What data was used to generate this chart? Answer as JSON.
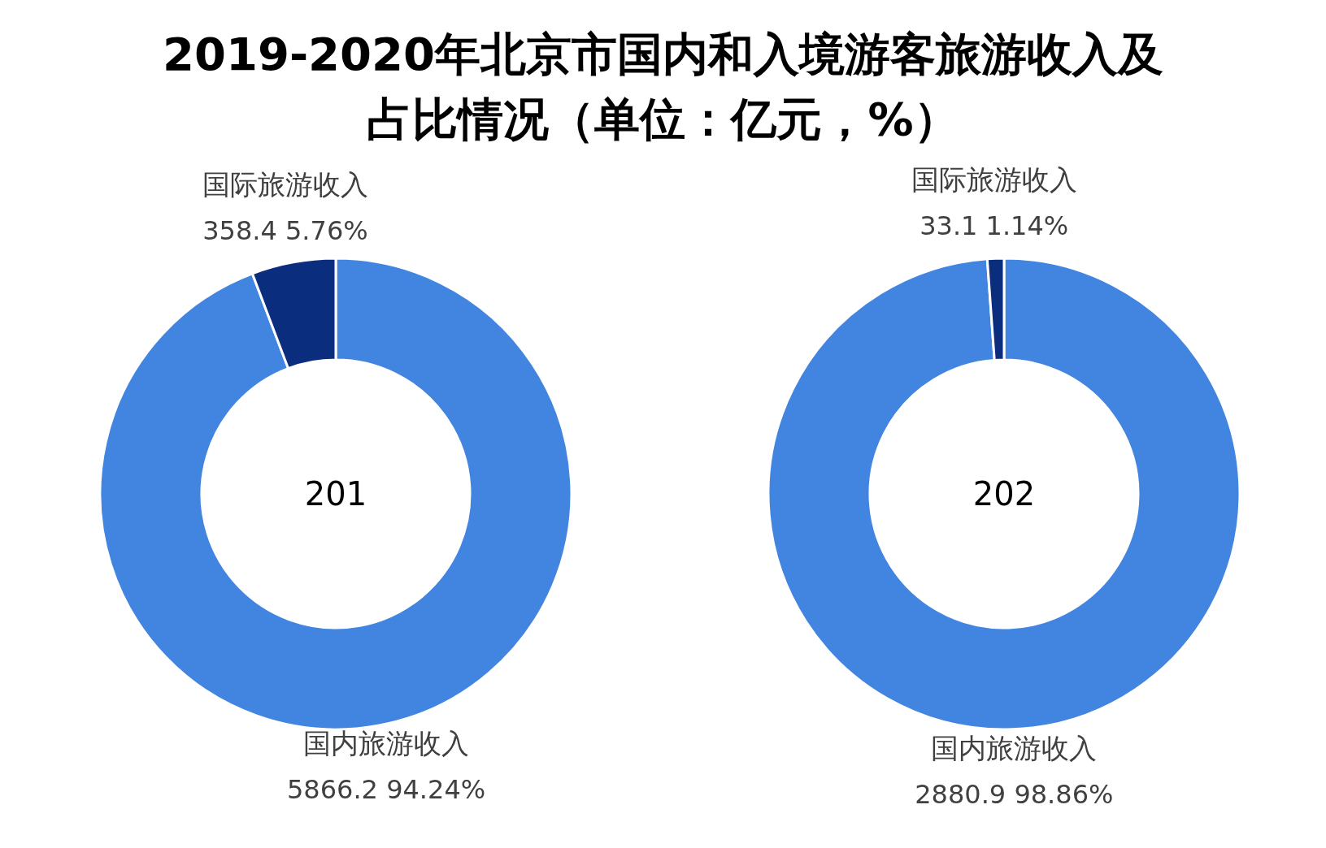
{
  "chart_data": [
    {
      "type": "donut",
      "title": "2019-2020年北京市国内和入境游客旅游收入及占比情况（单位：亿元，%）",
      "categories": [
        "国内旅游收入",
        "国际旅游收入"
      ],
      "values": [
        5866.2,
        358.4
      ],
      "value_labels": [
        "5866.2 94.24%",
        "358.4 5.76%"
      ],
      "colors": [
        "#4285e0",
        "#0b2d7e"
      ],
      "annotations": [
        "201"
      ]
    },
    {
      "type": "donut",
      "categories": [
        "国内旅游收入",
        "国际旅游收入"
      ],
      "values": [
        2880.9,
        33.1
      ],
      "value_labels": [
        "2880.9 98.86%",
        "33.1 1.14%"
      ],
      "colors": [
        "#4285e0",
        "#0b2d7e"
      ],
      "annotations": [
        "202"
      ]
    }
  ]
}
